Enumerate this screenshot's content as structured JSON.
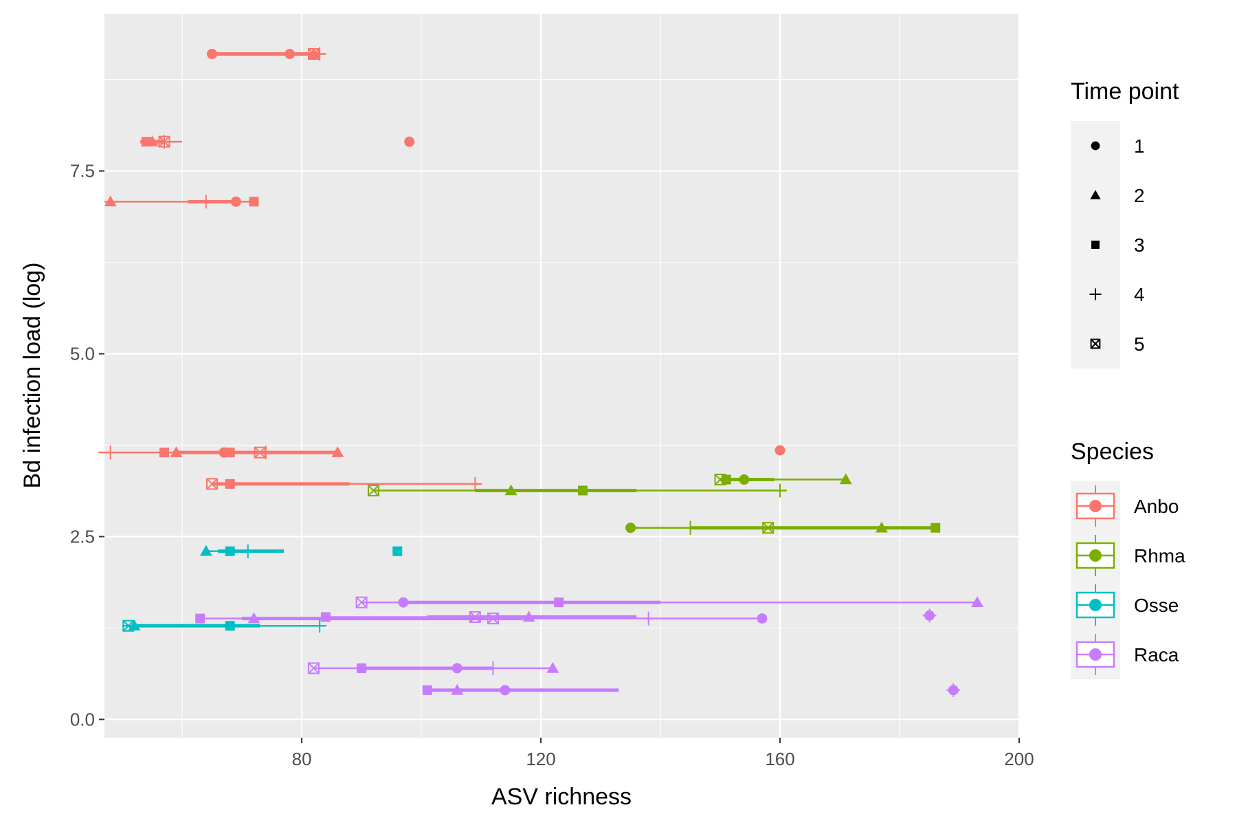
{
  "chart_data": {
    "type": "scatter",
    "xlabel": "ASV richness",
    "ylabel": "Bd infection load (log)",
    "xlim": [
      47,
      200
    ],
    "ylim": [
      -0.25,
      9.65
    ],
    "x_ticks": [
      80,
      120,
      160,
      200
    ],
    "y_ticks": [
      0.0,
      2.5,
      5.0,
      7.5
    ],
    "x_tick_labels": [
      "80",
      "120",
      "160",
      "200"
    ],
    "y_tick_labels": [
      "0.0",
      "2.5",
      "5.0",
      "7.5"
    ],
    "grid": true,
    "legend_position": "right",
    "shape_legend": {
      "title": "Time point",
      "entries": [
        {
          "label": "1",
          "shape": "circle"
        },
        {
          "label": "2",
          "shape": "triangle"
        },
        {
          "label": "3",
          "shape": "square"
        },
        {
          "label": "4",
          "shape": "plus"
        },
        {
          "label": "5",
          "shape": "square-cross"
        }
      ]
    },
    "color_legend": {
      "title": "Species",
      "entries": [
        {
          "label": "Anbo",
          "color": "#F8766D"
        },
        {
          "label": "Rhma",
          "color": "#7CAE00"
        },
        {
          "label": "Osse",
          "color": "#00BFC4"
        },
        {
          "label": "Raca",
          "color": "#C77CFF"
        }
      ]
    },
    "series": [
      {
        "name": "Anbo",
        "color": "#F8766D",
        "individuals": [
          {
            "y": 9.1,
            "whisker": [
              65,
              82
            ],
            "box": [
              65,
              82
            ],
            "median": 65,
            "points": [
              {
                "tp": 1,
                "x": 65
              },
              {
                "tp": 1,
                "x": 65
              }
            ]
          },
          {
            "y": 9.1,
            "whisker": [
              77,
              84
            ],
            "box": [
              80,
              83
            ],
            "median": 82,
            "points": [
              {
                "tp": 1,
                "x": 78
              },
              {
                "tp": 2,
                "x": 82
              },
              {
                "tp": 4,
                "x": 83
              },
              {
                "tp": 5,
                "x": 82
              }
            ]
          },
          {
            "y": 7.9,
            "whisker": [
              53,
              60
            ],
            "box": [
              53,
              57
            ],
            "median": 55,
            "points": [
              {
                "tp": 3,
                "x": 54
              },
              {
                "tp": 2,
                "x": 55
              },
              {
                "tp": 4,
                "x": 57
              },
              {
                "tp": 5,
                "x": 57
              }
            ]
          },
          {
            "y": 7.9,
            "whisker": [
              98,
              98
            ],
            "box": [
              98,
              98
            ],
            "median": 98,
            "points": [
              {
                "tp": 1,
                "x": 98
              }
            ]
          },
          {
            "y": 7.08,
            "whisker": [
              47,
              72
            ],
            "box": [
              61,
              69
            ],
            "median": 64,
            "points": [
              {
                "tp": 2,
                "x": 48
              },
              {
                "tp": 4,
                "x": 64
              },
              {
                "tp": 1,
                "x": 69
              },
              {
                "tp": 3,
                "x": 72
              }
            ]
          },
          {
            "y": 3.65,
            "whisker": [
              46,
              86
            ],
            "box": [
              59,
              86
            ],
            "median": 68,
            "points": [
              {
                "tp": 4,
                "x": 48
              },
              {
                "tp": 3,
                "x": 57
              },
              {
                "tp": 2,
                "x": 59
              },
              {
                "tp": 1,
                "x": 67
              },
              {
                "tp": 3,
                "x": 68
              },
              {
                "tp": 5,
                "x": 73
              },
              {
                "tp": 4,
                "x": 74
              },
              {
                "tp": 2,
                "x": 86
              }
            ]
          },
          {
            "y": 3.68,
            "whisker": [
              160,
              160
            ],
            "box": [
              160,
              160
            ],
            "median": 160,
            "points": [
              {
                "tp": 1,
                "x": 160
              }
            ]
          },
          {
            "y": 3.22,
            "whisker": [
              65,
              110
            ],
            "box": [
              65,
              88
            ],
            "median": 68,
            "points": [
              {
                "tp": 5,
                "x": 65
              },
              {
                "tp": 3,
                "x": 68
              },
              {
                "tp": 4,
                "x": 109
              }
            ]
          }
        ]
      },
      {
        "name": "Rhma",
        "color": "#7CAE00",
        "individuals": [
          {
            "y": 3.13,
            "whisker": [
              92,
              161
            ],
            "box": [
              109,
              136
            ],
            "median": 127,
            "points": [
              {
                "tp": 5,
                "x": 92
              },
              {
                "tp": 2,
                "x": 115
              },
              {
                "tp": 3,
                "x": 127
              },
              {
                "tp": 4,
                "x": 160
              }
            ]
          },
          {
            "y": 3.28,
            "whisker": [
              150,
              171
            ],
            "box": [
              150,
              159
            ],
            "median": 154,
            "points": [
              {
                "tp": 5,
                "x": 150
              },
              {
                "tp": 3,
                "x": 151
              },
              {
                "tp": 1,
                "x": 154
              },
              {
                "tp": 2,
                "x": 171
              }
            ]
          },
          {
            "y": 2.62,
            "whisker": [
              135,
              186
            ],
            "box": [
              145,
              186
            ],
            "median": 158,
            "points": [
              {
                "tp": 1,
                "x": 135
              },
              {
                "tp": 4,
                "x": 145
              },
              {
                "tp": 5,
                "x": 158
              },
              {
                "tp": 2,
                "x": 177
              },
              {
                "tp": 3,
                "x": 186
              }
            ]
          }
        ]
      },
      {
        "name": "Osse",
        "color": "#00BFC4",
        "individuals": [
          {
            "y": 2.3,
            "whisker": [
              64,
              77
            ],
            "box": [
              66,
              77
            ],
            "median": 68,
            "points": [
              {
                "tp": 2,
                "x": 64
              },
              {
                "tp": 3,
                "x": 68
              },
              {
                "tp": 4,
                "x": 71
              }
            ]
          },
          {
            "y": 2.3,
            "whisker": [
              96,
              96
            ],
            "box": [
              96,
              96
            ],
            "median": 96,
            "points": [
              {
                "tp": 3,
                "x": 96
              }
            ]
          },
          {
            "y": 1.28,
            "whisker": [
              50,
              84
            ],
            "box": [
              52,
              73
            ],
            "median": 60,
            "points": [
              {
                "tp": 5,
                "x": 51
              },
              {
                "tp": 2,
                "x": 52
              },
              {
                "tp": 3,
                "x": 68
              },
              {
                "tp": 4,
                "x": 83
              }
            ]
          }
        ]
      },
      {
        "name": "Raca",
        "color": "#C77CFF",
        "individuals": [
          {
            "y": 1.6,
            "whisker": [
              90,
              193
            ],
            "box": [
              97,
              140
            ],
            "median": 123,
            "points": [
              {
                "tp": 5,
                "x": 90
              },
              {
                "tp": 1,
                "x": 97
              },
              {
                "tp": 3,
                "x": 123
              },
              {
                "tp": 2,
                "x": 193
              }
            ]
          },
          {
            "y": 1.4,
            "whisker": [
              84,
              136
            ],
            "box": [
              101,
              136
            ],
            "median": 113,
            "points": [
              {
                "tp": 3,
                "x": 84
              },
              {
                "tp": 5,
                "x": 109
              },
              {
                "tp": 2,
                "x": 118
              }
            ]
          },
          {
            "y": 1.38,
            "whisker": [
              63,
              157
            ],
            "box": [
              70,
              117
            ],
            "median": 112,
            "points": [
              {
                "tp": 3,
                "x": 63
              },
              {
                "tp": 2,
                "x": 72
              },
              {
                "tp": 5,
                "x": 112
              },
              {
                "tp": 4,
                "x": 138
              },
              {
                "tp": 1,
                "x": 157
              }
            ]
          },
          {
            "y": 1.42,
            "whisker": [
              185,
              185
            ],
            "box": [
              185,
              185
            ],
            "median": 185,
            "points": [
              {
                "tp": 1,
                "x": 185
              },
              {
                "tp": 4,
                "x": 185
              }
            ]
          },
          {
            "y": 0.7,
            "whisker": [
              82,
              122
            ],
            "box": [
              90,
              112
            ],
            "median": 106,
            "points": [
              {
                "tp": 5,
                "x": 82
              },
              {
                "tp": 3,
                "x": 90
              },
              {
                "tp": 1,
                "x": 106
              },
              {
                "tp": 4,
                "x": 112
              },
              {
                "tp": 2,
                "x": 122
              }
            ]
          },
          {
            "y": 0.4,
            "whisker": [
              101,
              133
            ],
            "box": [
              101,
              133
            ],
            "median": 106,
            "points": [
              {
                "tp": 3,
                "x": 101
              },
              {
                "tp": 2,
                "x": 106
              },
              {
                "tp": 1,
                "x": 114
              }
            ]
          },
          {
            "y": 0.4,
            "whisker": [
              189,
              189
            ],
            "box": [
              189,
              189
            ],
            "median": 189,
            "points": [
              {
                "tp": 1,
                "x": 189
              },
              {
                "tp": 4,
                "x": 189
              }
            ]
          }
        ]
      }
    ]
  }
}
